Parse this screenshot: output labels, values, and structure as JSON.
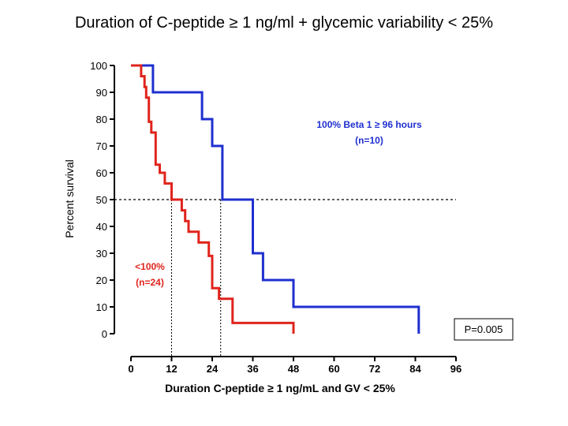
{
  "slide_title": "Duration of C-peptide ≥ 1 ng/ml + glycemic variability < 25%",
  "chart_data": {
    "type": "line",
    "subtype": "kaplan-meier-step",
    "xlabel": "Duration C-peptide ≥ 1 ng/mL and GV < 25%",
    "ylabel": "Percent survival",
    "xlim": [
      0,
      96
    ],
    "ylim": [
      0,
      100
    ],
    "x_ticks": [
      "0",
      "12",
      "24",
      "36",
      "48",
      "60",
      "72",
      "84",
      "96"
    ],
    "y_ticks": [
      "0",
      "10",
      "20",
      "30",
      "40",
      "50",
      "60",
      "70",
      "80",
      "90",
      "100"
    ],
    "reference_y": 50,
    "median_lines_x": [
      12,
      26.5
    ],
    "pvalue_label": "P=0.005",
    "series": [
      {
        "name": "100% Beta 1 ≥ 96 hours",
        "n_label": "(n=10)",
        "color": "#1f2fd0",
        "points": [
          [
            0,
            100
          ],
          [
            6.5,
            100
          ],
          [
            6.5,
            90
          ],
          [
            21,
            90
          ],
          [
            21,
            80
          ],
          [
            24,
            80
          ],
          [
            24,
            70
          ],
          [
            27,
            70
          ],
          [
            27,
            50
          ],
          [
            36,
            50
          ],
          [
            36,
            30
          ],
          [
            39,
            30
          ],
          [
            39,
            20
          ],
          [
            48,
            20
          ],
          [
            48,
            10
          ],
          [
            85,
            10
          ],
          [
            85,
            0
          ]
        ]
      },
      {
        "name": "<100%",
        "n_label": "(n=24)",
        "color": "#e0241c",
        "points": [
          [
            0,
            100
          ],
          [
            3,
            100
          ],
          [
            3,
            96
          ],
          [
            4,
            96
          ],
          [
            4,
            92
          ],
          [
            4.5,
            92
          ],
          [
            4.5,
            88
          ],
          [
            5.3,
            88
          ],
          [
            5.3,
            79
          ],
          [
            6,
            79
          ],
          [
            6,
            75
          ],
          [
            7.3,
            75
          ],
          [
            7.3,
            63
          ],
          [
            8.5,
            63
          ],
          [
            8.5,
            60
          ],
          [
            10,
            60
          ],
          [
            10,
            56
          ],
          [
            12,
            56
          ],
          [
            12,
            50
          ],
          [
            15,
            50
          ],
          [
            15,
            46
          ],
          [
            16,
            46
          ],
          [
            16,
            42
          ],
          [
            17,
            42
          ],
          [
            17,
            38
          ],
          [
            20,
            38
          ],
          [
            20,
            34
          ],
          [
            23,
            34
          ],
          [
            23,
            29
          ],
          [
            24,
            29
          ],
          [
            24,
            17
          ],
          [
            26,
            17
          ],
          [
            26,
            13
          ],
          [
            30,
            13
          ],
          [
            30,
            4
          ],
          [
            48,
            4
          ],
          [
            48,
            0
          ]
        ]
      }
    ]
  }
}
